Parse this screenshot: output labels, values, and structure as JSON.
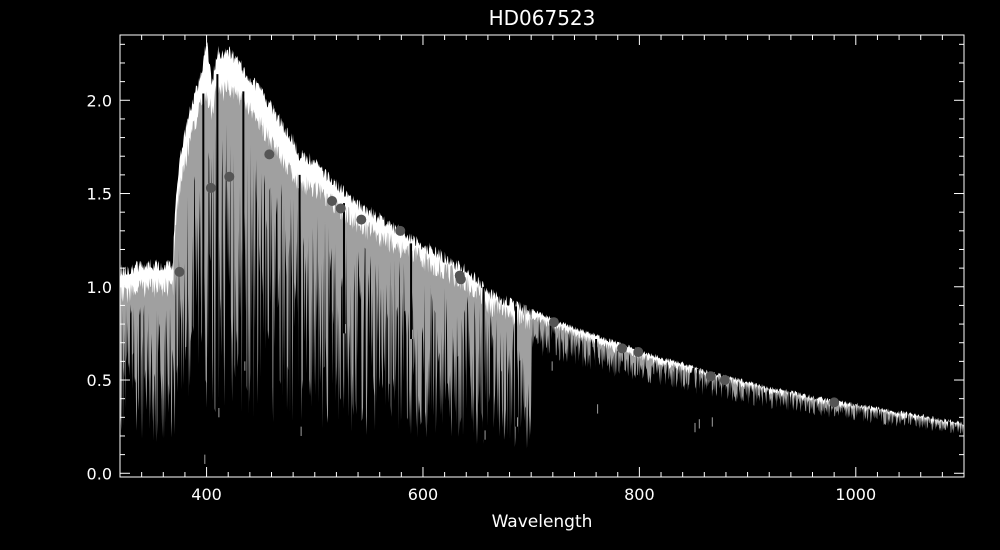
{
  "chart_data": {
    "type": "line",
    "title": "HD067523",
    "xlabel": "Wavelength",
    "ylabel": "",
    "xlim": [
      320,
      1100
    ],
    "ylim": [
      -0.02,
      2.35
    ],
    "x_ticks": [
      400,
      600,
      800,
      1000
    ],
    "x_tick_labels": [
      "400",
      "600",
      "800",
      "1000"
    ],
    "y_ticks": [
      0.0,
      0.5,
      1.0,
      1.5,
      2.0
    ],
    "y_tick_labels": [
      "0.0",
      "0.5",
      "1.0",
      "1.5",
      "2.0"
    ],
    "legend": "none",
    "grid": false,
    "colors": {
      "background": "#000000",
      "axes": "#ffffff",
      "upper_spectrum": "#ffffff",
      "lower_spectrum": "#a0a0a0",
      "photometry": "#555555"
    },
    "series": [
      {
        "role": "upper-envelope",
        "x": [
          320,
          340,
          360,
          369,
          370,
          372,
          375,
          380,
          385,
          390,
          395,
          400,
          405,
          410,
          415,
          420,
          425,
          430,
          440,
          450,
          460,
          470,
          480,
          486,
          490,
          500,
          520,
          540,
          560,
          580,
          600,
          620,
          640,
          656,
          660,
          680,
          700,
          720,
          740,
          760,
          780,
          800,
          820,
          840,
          860,
          880,
          900,
          920,
          940,
          960,
          980,
          1000,
          1020,
          1040,
          1060,
          1080,
          1100
        ],
        "y": [
          1.12,
          1.15,
          1.15,
          1.15,
          1.35,
          1.55,
          1.72,
          1.86,
          1.98,
          2.08,
          2.17,
          2.35,
          2.12,
          2.3,
          2.28,
          2.3,
          2.27,
          2.23,
          2.16,
          2.08,
          2.0,
          1.9,
          1.82,
          1.74,
          1.74,
          1.7,
          1.58,
          1.48,
          1.4,
          1.33,
          1.26,
          1.19,
          1.12,
          1.05,
          1.0,
          0.95,
          0.89,
          0.84,
          0.79,
          0.75,
          0.71,
          0.67,
          0.63,
          0.6,
          0.56,
          0.53,
          0.5,
          0.47,
          0.45,
          0.42,
          0.4,
          0.38,
          0.36,
          0.34,
          0.32,
          0.3,
          0.28
        ]
      },
      {
        "role": "lower-spectrum",
        "x": [
          320,
          340,
          360,
          369,
          370,
          372,
          375,
          380,
          385,
          390,
          395,
          400,
          405,
          410,
          415,
          420,
          425,
          430,
          440,
          450,
          460,
          470,
          480,
          486,
          490,
          500,
          520,
          540,
          560,
          580,
          600,
          620,
          640,
          656,
          660,
          680,
          700,
          720,
          740,
          760,
          780,
          800,
          820,
          840,
          860,
          880,
          900,
          920,
          940,
          960,
          980,
          1000,
          1020,
          1040,
          1060,
          1080,
          1100
        ],
        "y": [
          1.0,
          1.05,
          1.05,
          1.05,
          1.25,
          1.42,
          1.58,
          1.72,
          1.85,
          1.95,
          2.02,
          2.06,
          2.0,
          2.14,
          2.1,
          2.12,
          2.1,
          2.08,
          2.0,
          1.92,
          1.84,
          1.74,
          1.66,
          1.6,
          1.6,
          1.58,
          1.48,
          1.39,
          1.32,
          1.26,
          1.2,
          1.14,
          1.07,
          1.0,
          0.96,
          0.91,
          0.86,
          0.81,
          0.77,
          0.72,
          0.68,
          0.65,
          0.61,
          0.58,
          0.55,
          0.52,
          0.49,
          0.46,
          0.44,
          0.41,
          0.39,
          0.37,
          0.35,
          0.33,
          0.31,
          0.29,
          0.27
        ]
      }
    ],
    "absorption_lines": [
      {
        "x": 397,
        "depth_to": 0.05
      },
      {
        "x": 410,
        "depth_to": 0.3
      },
      {
        "x": 434,
        "depth_to": 0.55
      },
      {
        "x": 486,
        "depth_to": 0.2
      },
      {
        "x": 527,
        "depth_to": 0.75
      },
      {
        "x": 589,
        "depth_to": 0.72
      },
      {
        "x": 656,
        "depth_to": 0.18
      },
      {
        "x": 686,
        "depth_to": 0.25
      },
      {
        "x": 718,
        "depth_to": 0.55
      },
      {
        "x": 760,
        "depth_to": 0.32
      },
      {
        "x": 850,
        "depth_to": 0.22
      },
      {
        "x": 854,
        "depth_to": 0.24
      },
      {
        "x": 866,
        "depth_to": 0.25
      }
    ],
    "photometry": {
      "x": [
        375,
        404,
        421,
        458,
        516,
        524,
        543,
        579,
        634,
        635,
        721,
        784,
        799,
        866,
        879,
        980
      ],
      "y": [
        1.08,
        1.53,
        1.59,
        1.71,
        1.46,
        1.42,
        1.36,
        1.3,
        1.06,
        1.04,
        0.81,
        0.67,
        0.65,
        0.52,
        0.5,
        0.38
      ]
    }
  }
}
